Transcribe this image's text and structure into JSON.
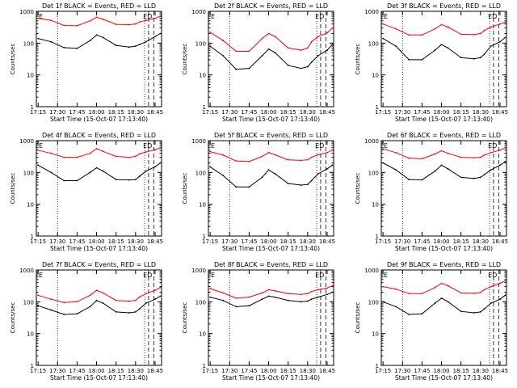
{
  "figure": {
    "ylabel": "Counts/sec",
    "xlabel": "Start Time (15-Oct-07 17:13:40)",
    "x_tick_labels": [
      "17:15",
      "17:30",
      "17:45",
      "18:00",
      "18:15",
      "18:30",
      "18:45"
    ],
    "y_tick_labels": [
      "1",
      "10",
      "100",
      "1000"
    ],
    "corner_labels": [
      "E",
      "E",
      "D"
    ],
    "colors": {
      "events": "#000000",
      "lld": "#ff0000"
    }
  },
  "chart_data": [
    {
      "type": "line",
      "title": "Det 1f BLACK = Events, RED = LLD",
      "x": [
        "17:15",
        "17:25",
        "17:35",
        "17:45",
        "17:55",
        "18:00",
        "18:05",
        "18:15",
        "18:25",
        "18:30",
        "18:33",
        "18:38",
        "18:45",
        "18:49"
      ],
      "series": [
        {
          "name": "BLACK = Events",
          "values": [
            140,
            110,
            72,
            68,
            120,
            180,
            150,
            85,
            75,
            80,
            90,
            110,
            160,
            200
          ]
        },
        {
          "name": "RED = LLD",
          "values": [
            600,
            520,
            360,
            350,
            500,
            650,
            560,
            390,
            380,
            400,
            460,
            520,
            600,
            700
          ]
        }
      ],
      "xlim": [
        "17:13:40",
        "18:50"
      ],
      "ylim": [
        1,
        1000
      ],
      "yscale": "log",
      "vlines_dotted": [
        "17:30",
        "18:37"
      ],
      "vlines_dashed": [
        "18:40",
        "18:44"
      ]
    },
    {
      "type": "line",
      "title": "Det 2f BLACK = Events, RED = LLD",
      "x": [
        "17:15",
        "17:25",
        "17:35",
        "17:45",
        "17:55",
        "18:00",
        "18:05",
        "18:15",
        "18:25",
        "18:30",
        "18:33",
        "18:38",
        "18:45",
        "18:49"
      ],
      "series": [
        {
          "name": "BLACK = Events",
          "values": [
            80,
            40,
            15,
            16,
            40,
            65,
            50,
            20,
            16,
            18,
            25,
            40,
            60,
            90
          ]
        },
        {
          "name": "RED = LLD",
          "values": [
            220,
            120,
            55,
            55,
            140,
            200,
            160,
            70,
            60,
            70,
            110,
            160,
            210,
            300
          ]
        }
      ],
      "xlim": [
        "17:13:40",
        "18:50"
      ],
      "ylim": [
        1,
        1000
      ],
      "yscale": "log",
      "vlines_dotted": [
        "17:30",
        "18:37"
      ],
      "vlines_dashed": [
        "18:40",
        "18:44"
      ]
    },
    {
      "type": "line",
      "title": "Det 3f BLACK = Events, RED = LLD",
      "x": [
        "17:15",
        "17:25",
        "17:35",
        "17:45",
        "17:55",
        "18:00",
        "18:05",
        "18:15",
        "18:25",
        "18:30",
        "18:33",
        "18:38",
        "18:45",
        "18:49"
      ],
      "series": [
        {
          "name": "BLACK = Events",
          "values": [
            140,
            80,
            30,
            30,
            60,
            90,
            70,
            35,
            32,
            35,
            45,
            80,
            110,
            150
          ]
        },
        {
          "name": "RED = LLD",
          "values": [
            400,
            280,
            180,
            180,
            280,
            380,
            320,
            190,
            185,
            200,
            250,
            320,
            400,
            450
          ]
        }
      ],
      "xlim": [
        "17:13:40",
        "18:50"
      ],
      "ylim": [
        1,
        1000
      ],
      "yscale": "log",
      "vlines_dotted": [
        "17:30",
        "18:37"
      ],
      "vlines_dashed": [
        "18:40",
        "18:44"
      ]
    },
    {
      "type": "line",
      "title": "Det 4f BLACK = Events, RED = LLD",
      "x": [
        "17:15",
        "17:25",
        "17:35",
        "17:45",
        "17:55",
        "18:00",
        "18:05",
        "18:15",
        "18:25",
        "18:30",
        "18:33",
        "18:38",
        "18:45",
        "18:49"
      ],
      "series": [
        {
          "name": "BLACK = Events",
          "values": [
            170,
            100,
            55,
            55,
            100,
            140,
            110,
            60,
            58,
            60,
            75,
            110,
            150,
            200
          ]
        },
        {
          "name": "RED = LLD",
          "values": [
            500,
            400,
            300,
            300,
            400,
            560,
            460,
            320,
            300,
            320,
            380,
            440,
            520,
            600
          ]
        }
      ],
      "xlim": [
        "17:13:40",
        "18:50"
      ],
      "ylim": [
        1,
        1000
      ],
      "yscale": "log",
      "vlines_dotted": [
        "17:30",
        "18:37"
      ],
      "vlines_dashed": [
        "18:40",
        "18:44"
      ]
    },
    {
      "type": "line",
      "title": "Det 5f BLACK = Events, RED = LLD",
      "x": [
        "17:15",
        "17:25",
        "17:35",
        "17:45",
        "17:55",
        "18:00",
        "18:05",
        "18:15",
        "18:25",
        "18:30",
        "18:33",
        "18:38",
        "18:45",
        "18:49"
      ],
      "series": [
        {
          "name": "BLACK = Events",
          "values": [
            150,
            80,
            35,
            35,
            70,
            120,
            90,
            45,
            40,
            42,
            55,
            90,
            130,
            170
          ]
        },
        {
          "name": "RED = LLD",
          "values": [
            450,
            350,
            230,
            220,
            320,
            420,
            360,
            250,
            240,
            250,
            300,
            360,
            420,
            500
          ]
        }
      ],
      "xlim": [
        "17:13:40",
        "18:50"
      ],
      "ylim": [
        1,
        1000
      ],
      "yscale": "log",
      "vlines_dotted": [
        "17:30",
        "18:37"
      ],
      "vlines_dashed": [
        "18:40",
        "18:44"
      ]
    },
    {
      "type": "line",
      "title": "Det 6f BLACK = Events, RED = LLD",
      "x": [
        "17:15",
        "17:25",
        "17:35",
        "17:45",
        "17:55",
        "18:00",
        "18:05",
        "18:15",
        "18:25",
        "18:30",
        "18:33",
        "18:38",
        "18:45",
        "18:49"
      ],
      "series": [
        {
          "name": "BLACK = Events",
          "values": [
            200,
            120,
            60,
            58,
            110,
            170,
            130,
            70,
            65,
            70,
            85,
            120,
            170,
            220
          ]
        },
        {
          "name": "RED = LLD",
          "values": [
            550,
            420,
            280,
            270,
            380,
            480,
            400,
            300,
            290,
            300,
            350,
            420,
            500,
            600
          ]
        }
      ],
      "xlim": [
        "17:13:40",
        "18:50"
      ],
      "ylim": [
        1,
        1000
      ],
      "yscale": "log",
      "vlines_dotted": [
        "17:30",
        "18:37"
      ],
      "vlines_dashed": [
        "18:40",
        "18:44"
      ]
    },
    {
      "type": "line",
      "title": "Det 7f BLACK = Events, RED = LLD",
      "x": [
        "17:15",
        "17:25",
        "17:35",
        "17:45",
        "17:55",
        "18:00",
        "18:05",
        "18:15",
        "18:25",
        "18:30",
        "18:33",
        "18:38",
        "18:45",
        "18:49"
      ],
      "series": [
        {
          "name": "BLACK = Events",
          "values": [
            75,
            55,
            40,
            42,
            70,
            110,
            90,
            48,
            45,
            48,
            60,
            90,
            120,
            150
          ]
        },
        {
          "name": "RED = LLD",
          "values": [
            160,
            120,
            95,
            100,
            160,
            230,
            190,
            110,
            105,
            110,
            140,
            180,
            230,
            280
          ]
        }
      ],
      "xlim": [
        "17:13:40",
        "18:50"
      ],
      "ylim": [
        1,
        1000
      ],
      "yscale": "log",
      "vlines_dotted": [
        "17:30",
        "18:37"
      ],
      "vlines_dashed": [
        "18:40",
        "18:44"
      ]
    },
    {
      "type": "line",
      "title": "Det 8f BLACK = Events, RED = LLD",
      "x": [
        "17:15",
        "17:25",
        "17:35",
        "17:45",
        "17:55",
        "18:00",
        "18:05",
        "18:15",
        "18:25",
        "18:30",
        "18:33",
        "18:38",
        "18:45",
        "18:49"
      ],
      "series": [
        {
          "name": "BLACK = Events",
          "values": [
            140,
            110,
            70,
            75,
            120,
            150,
            140,
            110,
            100,
            105,
            120,
            140,
            170,
            200
          ]
        },
        {
          "name": "RED = LLD",
          "values": [
            260,
            190,
            130,
            140,
            190,
            240,
            220,
            180,
            170,
            180,
            210,
            240,
            270,
            320
          ]
        }
      ],
      "xlim": [
        "17:13:40",
        "18:50"
      ],
      "ylim": [
        1,
        1000
      ],
      "yscale": "log",
      "vlines_dotted": [
        "17:30",
        "18:37"
      ],
      "vlines_dashed": [
        "18:40",
        "18:44"
      ]
    },
    {
      "type": "line",
      "title": "Det 9f BLACK = Events, RED = LLD",
      "x": [
        "17:15",
        "17:25",
        "17:35",
        "17:45",
        "17:55",
        "18:00",
        "18:05",
        "18:15",
        "18:25",
        "18:30",
        "18:33",
        "18:38",
        "18:45",
        "18:49"
      ],
      "series": [
        {
          "name": "BLACK = Events",
          "values": [
            100,
            70,
            40,
            42,
            90,
            130,
            100,
            50,
            45,
            48,
            60,
            90,
            120,
            160
          ]
        },
        {
          "name": "RED = LLD",
          "values": [
            300,
            250,
            180,
            180,
            280,
            380,
            320,
            190,
            185,
            195,
            240,
            300,
            380,
            450
          ]
        }
      ],
      "xlim": [
        "17:13:40",
        "18:50"
      ],
      "ylim": [
        1,
        1000
      ],
      "yscale": "log",
      "vlines_dotted": [
        "17:30",
        "18:37"
      ],
      "vlines_dashed": [
        "18:40",
        "18:44"
      ]
    }
  ]
}
